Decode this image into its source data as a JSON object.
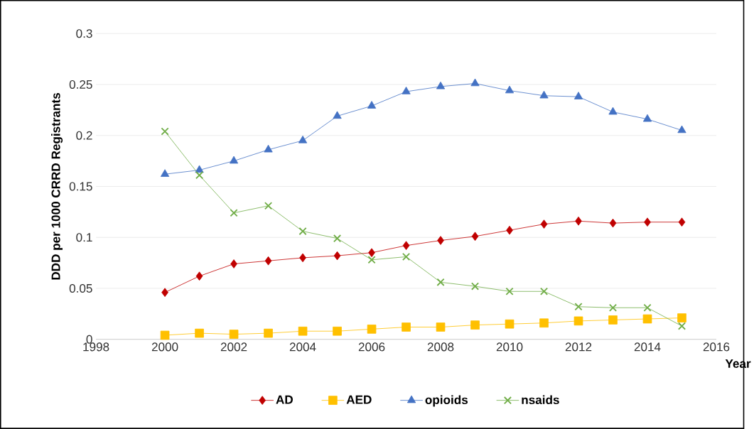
{
  "chart_data": {
    "type": "line",
    "xlabel": "Year",
    "ylabel": "DDD per 1000 CRRD Registrants",
    "x": [
      2000,
      2001,
      2002,
      2003,
      2004,
      2005,
      2006,
      2007,
      2008,
      2009,
      2010,
      2011,
      2012,
      2013,
      2014,
      2015
    ],
    "series": [
      {
        "name": "AD",
        "color": "#c00000",
        "marker": "diamond",
        "values": [
          0.046,
          0.062,
          0.074,
          0.077,
          0.08,
          0.082,
          0.085,
          0.092,
          0.097,
          0.101,
          0.107,
          0.113,
          0.116,
          0.114,
          0.115,
          0.115
        ]
      },
      {
        "name": "AED",
        "color": "#ffc000",
        "marker": "square",
        "values": [
          0.004,
          0.006,
          0.005,
          0.006,
          0.008,
          0.008,
          0.01,
          0.012,
          0.012,
          0.014,
          0.015,
          0.016,
          0.018,
          0.019,
          0.02,
          0.021
        ]
      },
      {
        "name": "opioids",
        "color": "#4472c4",
        "marker": "triangle",
        "values": [
          0.162,
          0.166,
          0.175,
          0.186,
          0.195,
          0.219,
          0.229,
          0.243,
          0.248,
          0.251,
          0.244,
          0.239,
          0.238,
          0.223,
          0.216,
          0.205
        ]
      },
      {
        "name": "nsaids",
        "color": "#70ad47",
        "marker": "cross",
        "values": [
          0.204,
          0.161,
          0.124,
          0.131,
          0.106,
          0.099,
          0.078,
          0.081,
          0.056,
          0.052,
          0.047,
          0.047,
          0.032,
          0.031,
          0.031,
          0.013
        ]
      }
    ],
    "xlim": [
      1998,
      2016
    ],
    "xticks": [
      1998,
      2000,
      2002,
      2004,
      2006,
      2008,
      2010,
      2012,
      2014,
      2016
    ],
    "ylim": [
      0,
      0.3
    ],
    "yticks": [
      0,
      0.05,
      0.1,
      0.15,
      0.2,
      0.25,
      0.3
    ],
    "grid": "y",
    "legend": "bottom",
    "line_style": "solid"
  }
}
